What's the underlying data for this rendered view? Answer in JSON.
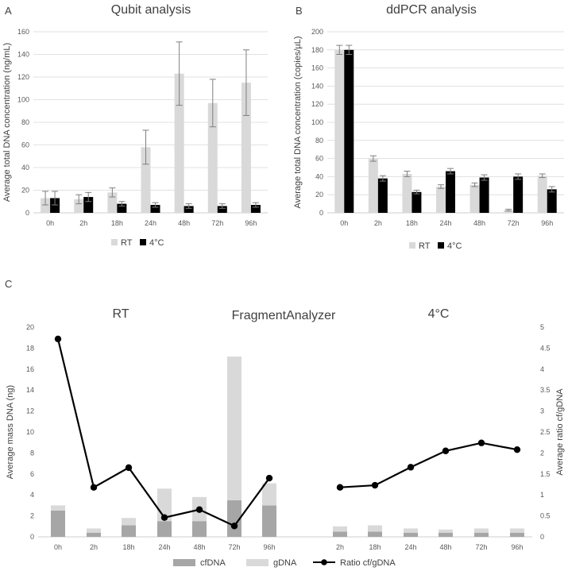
{
  "colors": {
    "rt": "#d9d9d9",
    "cold": "#000000",
    "cfdna": "#a6a6a6",
    "gdna": "#d9d9d9",
    "ratio": "#000000",
    "grid": "#d9d9d9",
    "axis": "#bfbfbf",
    "err": "#7f7f7f"
  },
  "chart_data": [
    {
      "panel": "A",
      "type": "bar",
      "title": "Qubit analysis",
      "ylabel": "Average total DNA concentration (ng/mL)",
      "xlabel": "",
      "ylim": [
        0,
        160
      ],
      "yticks": [
        0,
        20,
        40,
        60,
        80,
        100,
        120,
        140,
        160
      ],
      "categories": [
        "0h",
        "2h",
        "18h",
        "24h",
        "48h",
        "72h",
        "96h"
      ],
      "series": [
        {
          "name": "RT",
          "values": [
            13,
            12,
            18,
            58,
            123,
            97,
            115
          ],
          "errors": [
            6,
            4,
            4,
            15,
            28,
            21,
            29
          ]
        },
        {
          "name": "4°C",
          "values": [
            13,
            14,
            8,
            7,
            6,
            6,
            7
          ],
          "errors": [
            6,
            4,
            2,
            2,
            2,
            2,
            2
          ]
        }
      ],
      "legend": [
        "RT",
        "4°C"
      ]
    },
    {
      "panel": "B",
      "type": "bar",
      "title": "ddPCR analysis",
      "ylabel": "Average total DNA concentration (copies/µL)",
      "xlabel": "",
      "ylim": [
        0,
        200
      ],
      "yticks": [
        0,
        20,
        40,
        60,
        80,
        100,
        120,
        140,
        160,
        180,
        200
      ],
      "categories": [
        "0h",
        "2h",
        "18h",
        "24h",
        "48h",
        "72h",
        "96h"
      ],
      "series": [
        {
          "name": "RT",
          "values": [
            180,
            60,
            43,
            29,
            31,
            3,
            41
          ],
          "errors": [
            5,
            3,
            3,
            2,
            2,
            1,
            2
          ]
        },
        {
          "name": "4°C",
          "values": [
            180,
            38,
            23,
            46,
            39,
            40,
            26
          ],
          "errors": [
            5,
            3,
            2,
            3,
            3,
            3,
            3
          ]
        }
      ],
      "legend": [
        "RT",
        "4°C"
      ]
    },
    {
      "panel": "C",
      "type": "bar",
      "title": "FragmentAnalyzer",
      "group_labels": [
        "RT",
        "4°C"
      ],
      "ylabel": "Average mass DNA (ng)",
      "y2label": "Average ratio cf/gDNA",
      "ylim": [
        0,
        20
      ],
      "y2lim": [
        0,
        5
      ],
      "yticks": [
        0,
        2,
        4,
        6,
        8,
        10,
        12,
        14,
        16,
        18,
        20
      ],
      "y2ticks": [
        0,
        0.5,
        1,
        1.5,
        2,
        2.5,
        3,
        3.5,
        4,
        4.5,
        5
      ],
      "groups": [
        {
          "name": "RT",
          "categories": [
            "0h",
            "2h",
            "18h",
            "24h",
            "48h",
            "72h",
            "96h"
          ],
          "cfDNA": [
            2.5,
            0.4,
            1.1,
            1.5,
            1.5,
            3.5,
            3.0
          ],
          "gDNA": [
            0.5,
            0.4,
            0.7,
            3.1,
            2.3,
            13.7,
            2.1
          ],
          "ratio": [
            4.72,
            1.18,
            1.65,
            0.46,
            0.65,
            0.26,
            1.4
          ]
        },
        {
          "name": "4°C",
          "categories": [
            "2h",
            "18h",
            "24h",
            "48h",
            "72h",
            "96h"
          ],
          "cfDNA": [
            0.5,
            0.5,
            0.4,
            0.4,
            0.4,
            0.4
          ],
          "gDNA": [
            0.5,
            0.6,
            0.4,
            0.3,
            0.4,
            0.4
          ],
          "ratio": [
            1.18,
            1.23,
            1.66,
            2.05,
            2.24,
            2.08
          ]
        }
      ],
      "legend": [
        "cfDNA",
        "gDNA",
        "Ratio cf/gDNA"
      ]
    }
  ],
  "panel_letters": [
    "A",
    "B",
    "C"
  ]
}
